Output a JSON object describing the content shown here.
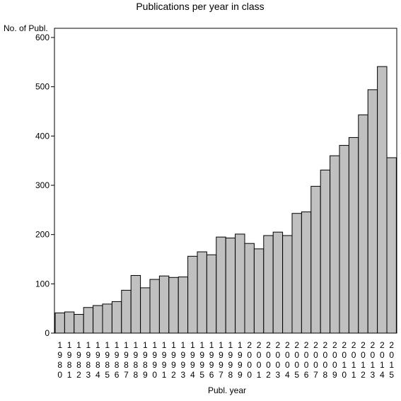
{
  "chart_data": {
    "type": "bar",
    "title": "Publications per year in class",
    "ylabel": "No. of Publ.",
    "xlabel": "Publ. year",
    "ylim": [
      0,
      600
    ],
    "yticks": [
      0,
      100,
      200,
      300,
      400,
      500,
      600
    ],
    "grid": false,
    "colors": {
      "bar_fill": "#c0c0c0",
      "bar_stroke": "#000000",
      "background": "#ffffff"
    },
    "categories": [
      "1980",
      "1981",
      "1982",
      "1983",
      "1984",
      "1985",
      "1986",
      "1987",
      "1988",
      "1989",
      "1990",
      "1991",
      "1992",
      "1993",
      "1994",
      "1995",
      "1996",
      "1997",
      "1998",
      "1999",
      "2000",
      "2001",
      "2002",
      "2003",
      "2004",
      "2005",
      "2006",
      "2007",
      "2008",
      "2009",
      "2010",
      "2011",
      "2012",
      "2013",
      "2014",
      "2015"
    ],
    "values": [
      41,
      43,
      38,
      52,
      56,
      59,
      64,
      87,
      117,
      92,
      109,
      116,
      113,
      114,
      156,
      165,
      159,
      195,
      193,
      201,
      182,
      171,
      198,
      205,
      198,
      243,
      246,
      298,
      331,
      360,
      381,
      397,
      443,
      494,
      541,
      356
    ]
  }
}
